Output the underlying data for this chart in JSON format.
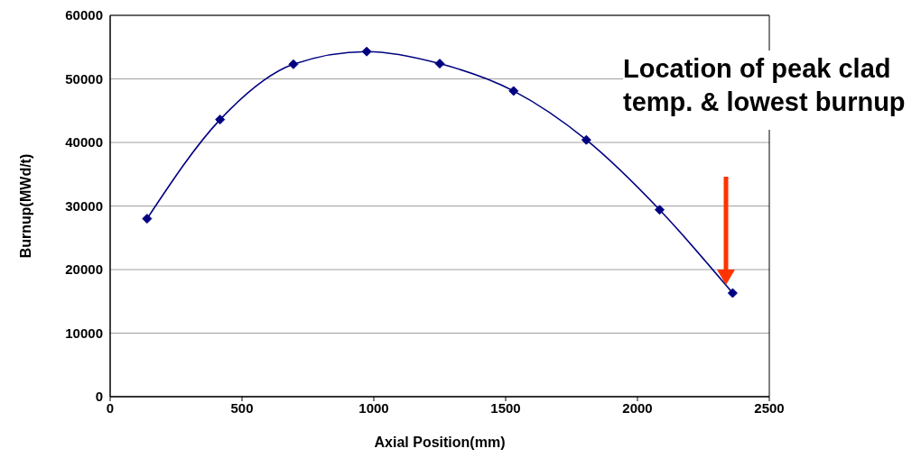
{
  "chart_data": {
    "type": "line",
    "xlabel": "Axial Position(mm)",
    "ylabel": "Burnup(MWd/t)",
    "x": [
      140,
      417,
      695,
      973,
      1250,
      1530,
      1806,
      2084,
      2361
    ],
    "series": [
      {
        "color": "#000080",
        "values": [
          28000,
          43600,
          52300,
          54300,
          52400,
          48100,
          40400,
          29400,
          16300
        ]
      }
    ],
    "xlim": [
      0,
      2500
    ],
    "xticks": [
      0,
      500,
      1000,
      1500,
      2000,
      2500
    ],
    "ylim": [
      0,
      60000
    ],
    "yticks": [
      0,
      10000,
      20000,
      30000,
      40000,
      50000,
      60000
    ],
    "grid": "y",
    "legend": false,
    "marker": "diamond",
    "line_style": "solid",
    "annotations": [
      "Location of peak clad temp. & lowest burnup"
    ]
  }
}
